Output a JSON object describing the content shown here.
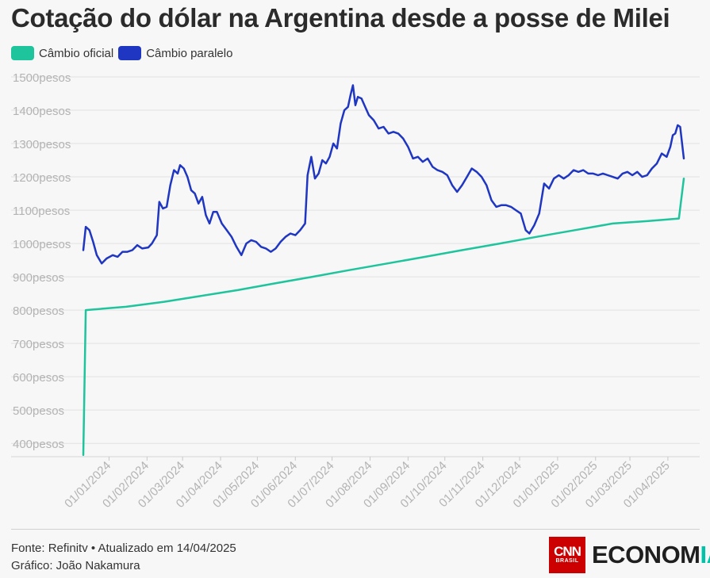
{
  "header": {
    "title": "Cotação do dólar na Argentina desde a posse de Milei"
  },
  "legend": [
    {
      "label": "Câmbio oficial",
      "color": "#1dc49c"
    },
    {
      "label": "Câmbio paralelo",
      "color": "#1f36c2"
    }
  ],
  "footer": {
    "source": "Fonte: Refinitv • Atualizado em 14/04/2025",
    "credit": "Gráfico: João Nakamura"
  },
  "brand": {
    "cnn": "CNN",
    "cnn_sub": "BRASIL",
    "word_main": "ECONOM",
    "word_accent": "IA"
  },
  "chart_data": {
    "type": "line",
    "title": "Cotação do dólar na Argentina desde a posse de Milei",
    "x_start_date": "2023-12-11",
    "x_end_date": "2025-04-14",
    "ylim": [
      360,
      1500
    ],
    "y_ticks": [
      {
        "value": 400,
        "label": "400pesos"
      },
      {
        "value": 500,
        "label": "500pesos"
      },
      {
        "value": 600,
        "label": "600pesos"
      },
      {
        "value": 700,
        "label": "700pesos"
      },
      {
        "value": 800,
        "label": "800pesos"
      },
      {
        "value": 900,
        "label": "900pesos"
      },
      {
        "value": 1000,
        "label": "1000pesos"
      },
      {
        "value": 1100,
        "label": "1100pesos"
      },
      {
        "value": 1200,
        "label": "1200pesos"
      },
      {
        "value": 1300,
        "label": "1300pesos"
      },
      {
        "value": 1400,
        "label": "1400pesos"
      },
      {
        "value": 1500,
        "label": "1500pesos"
      }
    ],
    "x_ticks": [
      {
        "date": "2024-01-01",
        "label": "01/01/2024"
      },
      {
        "date": "2024-02-01",
        "label": "01/02/2024"
      },
      {
        "date": "2024-03-01",
        "label": "01/03/2024"
      },
      {
        "date": "2024-04-01",
        "label": "01/04/2024"
      },
      {
        "date": "2024-05-01",
        "label": "01/05/2024"
      },
      {
        "date": "2024-06-01",
        "label": "01/06/2024"
      },
      {
        "date": "2024-07-01",
        "label": "01/07/2024"
      },
      {
        "date": "2024-08-01",
        "label": "01/08/2024"
      },
      {
        "date": "2024-09-01",
        "label": "01/09/2024"
      },
      {
        "date": "2024-10-01",
        "label": "01/10/2024"
      },
      {
        "date": "2024-11-01",
        "label": "01/11/2024"
      },
      {
        "date": "2024-12-01",
        "label": "01/12/2024"
      },
      {
        "date": "2025-01-01",
        "label": "01/01/2025"
      },
      {
        "date": "2025-02-01",
        "label": "01/02/2025"
      },
      {
        "date": "2025-03-01",
        "label": "01/03/2025"
      },
      {
        "date": "2025-04-01",
        "label": "01/04/2025"
      }
    ],
    "grid": true,
    "legend_position": "top-left",
    "series": [
      {
        "name": "Câmbio oficial",
        "color": "#1dc49c",
        "points": [
          [
            "2023-12-11",
            365
          ],
          [
            "2023-12-13",
            800
          ],
          [
            "2024-01-15",
            810
          ],
          [
            "2024-02-15",
            825
          ],
          [
            "2024-03-15",
            842
          ],
          [
            "2024-04-15",
            860
          ],
          [
            "2024-05-15",
            880
          ],
          [
            "2024-06-15",
            900
          ],
          [
            "2024-07-15",
            920
          ],
          [
            "2024-08-15",
            940
          ],
          [
            "2024-09-15",
            960
          ],
          [
            "2024-10-15",
            980
          ],
          [
            "2024-11-15",
            1000
          ],
          [
            "2024-12-15",
            1020
          ],
          [
            "2025-01-15",
            1040
          ],
          [
            "2025-02-15",
            1060
          ],
          [
            "2025-03-15",
            1067
          ],
          [
            "2025-04-10",
            1075
          ],
          [
            "2025-04-14",
            1195
          ]
        ]
      },
      {
        "name": "Câmbio paralelo",
        "color": "#1f36c2",
        "points": [
          [
            "2023-12-11",
            980
          ],
          [
            "2023-12-13",
            1050
          ],
          [
            "2023-12-16",
            1040
          ],
          [
            "2023-12-19",
            1005
          ],
          [
            "2023-12-22",
            965
          ],
          [
            "2023-12-26",
            940
          ],
          [
            "2023-12-30",
            955
          ],
          [
            "2024-01-04",
            965
          ],
          [
            "2024-01-08",
            960
          ],
          [
            "2024-01-12",
            975
          ],
          [
            "2024-01-16",
            975
          ],
          [
            "2024-01-20",
            980
          ],
          [
            "2024-01-24",
            995
          ],
          [
            "2024-01-28",
            985
          ],
          [
            "2024-02-02",
            988
          ],
          [
            "2024-02-05",
            1000
          ],
          [
            "2024-02-09",
            1025
          ],
          [
            "2024-02-11",
            1125
          ],
          [
            "2024-02-14",
            1105
          ],
          [
            "2024-02-17",
            1110
          ],
          [
            "2024-02-20",
            1175
          ],
          [
            "2024-02-23",
            1220
          ],
          [
            "2024-02-26",
            1210
          ],
          [
            "2024-02-28",
            1235
          ],
          [
            "2024-03-02",
            1225
          ],
          [
            "2024-03-05",
            1200
          ],
          [
            "2024-03-08",
            1160
          ],
          [
            "2024-03-11",
            1150
          ],
          [
            "2024-03-14",
            1120
          ],
          [
            "2024-03-17",
            1140
          ],
          [
            "2024-03-20",
            1085
          ],
          [
            "2024-03-23",
            1060
          ],
          [
            "2024-03-26",
            1095
          ],
          [
            "2024-03-29",
            1095
          ],
          [
            "2024-04-02",
            1060
          ],
          [
            "2024-04-06",
            1040
          ],
          [
            "2024-04-10",
            1020
          ],
          [
            "2024-04-14",
            990
          ],
          [
            "2024-04-18",
            965
          ],
          [
            "2024-04-22",
            1000
          ],
          [
            "2024-04-26",
            1010
          ],
          [
            "2024-04-30",
            1005
          ],
          [
            "2024-05-04",
            990
          ],
          [
            "2024-05-08",
            985
          ],
          [
            "2024-05-12",
            975
          ],
          [
            "2024-05-16",
            985
          ],
          [
            "2024-05-20",
            1005
          ],
          [
            "2024-05-24",
            1020
          ],
          [
            "2024-05-28",
            1030
          ],
          [
            "2024-06-01",
            1025
          ],
          [
            "2024-06-05",
            1040
          ],
          [
            "2024-06-09",
            1060
          ],
          [
            "2024-06-11",
            1205
          ],
          [
            "2024-06-14",
            1260
          ],
          [
            "2024-06-17",
            1195
          ],
          [
            "2024-06-20",
            1210
          ],
          [
            "2024-06-23",
            1250
          ],
          [
            "2024-06-26",
            1240
          ],
          [
            "2024-06-29",
            1260
          ],
          [
            "2024-07-02",
            1300
          ],
          [
            "2024-07-05",
            1285
          ],
          [
            "2024-07-08",
            1360
          ],
          [
            "2024-07-11",
            1400
          ],
          [
            "2024-07-14",
            1410
          ],
          [
            "2024-07-16",
            1445
          ],
          [
            "2024-07-18",
            1475
          ],
          [
            "2024-07-20",
            1415
          ],
          [
            "2024-07-22",
            1440
          ],
          [
            "2024-07-25",
            1435
          ],
          [
            "2024-07-28",
            1410
          ],
          [
            "2024-07-31",
            1385
          ],
          [
            "2024-08-04",
            1370
          ],
          [
            "2024-08-08",
            1345
          ],
          [
            "2024-08-12",
            1350
          ],
          [
            "2024-08-16",
            1330
          ],
          [
            "2024-08-20",
            1335
          ],
          [
            "2024-08-24",
            1330
          ],
          [
            "2024-08-28",
            1315
          ],
          [
            "2024-09-01",
            1290
          ],
          [
            "2024-09-05",
            1255
          ],
          [
            "2024-09-09",
            1260
          ],
          [
            "2024-09-13",
            1245
          ],
          [
            "2024-09-17",
            1255
          ],
          [
            "2024-09-21",
            1230
          ],
          [
            "2024-09-25",
            1220
          ],
          [
            "2024-09-29",
            1215
          ],
          [
            "2024-10-03",
            1205
          ],
          [
            "2024-10-07",
            1175
          ],
          [
            "2024-10-11",
            1155
          ],
          [
            "2024-10-15",
            1175
          ],
          [
            "2024-10-19",
            1200
          ],
          [
            "2024-10-23",
            1225
          ],
          [
            "2024-10-27",
            1215
          ],
          [
            "2024-10-31",
            1200
          ],
          [
            "2024-11-04",
            1175
          ],
          [
            "2024-11-08",
            1130
          ],
          [
            "2024-11-12",
            1110
          ],
          [
            "2024-11-16",
            1115
          ],
          [
            "2024-11-20",
            1115
          ],
          [
            "2024-11-24",
            1110
          ],
          [
            "2024-11-28",
            1100
          ],
          [
            "2024-12-02",
            1090
          ],
          [
            "2024-12-06",
            1040
          ],
          [
            "2024-12-09",
            1030
          ],
          [
            "2024-12-13",
            1055
          ],
          [
            "2024-12-17",
            1090
          ],
          [
            "2024-12-21",
            1180
          ],
          [
            "2024-12-25",
            1165
          ],
          [
            "2024-12-29",
            1195
          ],
          [
            "2025-01-02",
            1205
          ],
          [
            "2025-01-06",
            1195
          ],
          [
            "2025-01-10",
            1205
          ],
          [
            "2025-01-14",
            1220
          ],
          [
            "2025-01-18",
            1215
          ],
          [
            "2025-01-22",
            1220
          ],
          [
            "2025-01-26",
            1210
          ],
          [
            "2025-01-30",
            1210
          ],
          [
            "2025-02-03",
            1205
          ],
          [
            "2025-02-07",
            1210
          ],
          [
            "2025-02-11",
            1205
          ],
          [
            "2025-02-15",
            1200
          ],
          [
            "2025-02-19",
            1195
          ],
          [
            "2025-02-23",
            1210
          ],
          [
            "2025-02-27",
            1215
          ],
          [
            "2025-03-03",
            1205
          ],
          [
            "2025-03-07",
            1215
          ],
          [
            "2025-03-11",
            1200
          ],
          [
            "2025-03-15",
            1205
          ],
          [
            "2025-03-19",
            1225
          ],
          [
            "2025-03-23",
            1240
          ],
          [
            "2025-03-27",
            1270
          ],
          [
            "2025-03-31",
            1260
          ],
          [
            "2025-04-03",
            1290
          ],
          [
            "2025-04-05",
            1325
          ],
          [
            "2025-04-07",
            1330
          ],
          [
            "2025-04-09",
            1355
          ],
          [
            "2025-04-11",
            1350
          ],
          [
            "2025-04-14",
            1255
          ]
        ]
      }
    ]
  }
}
